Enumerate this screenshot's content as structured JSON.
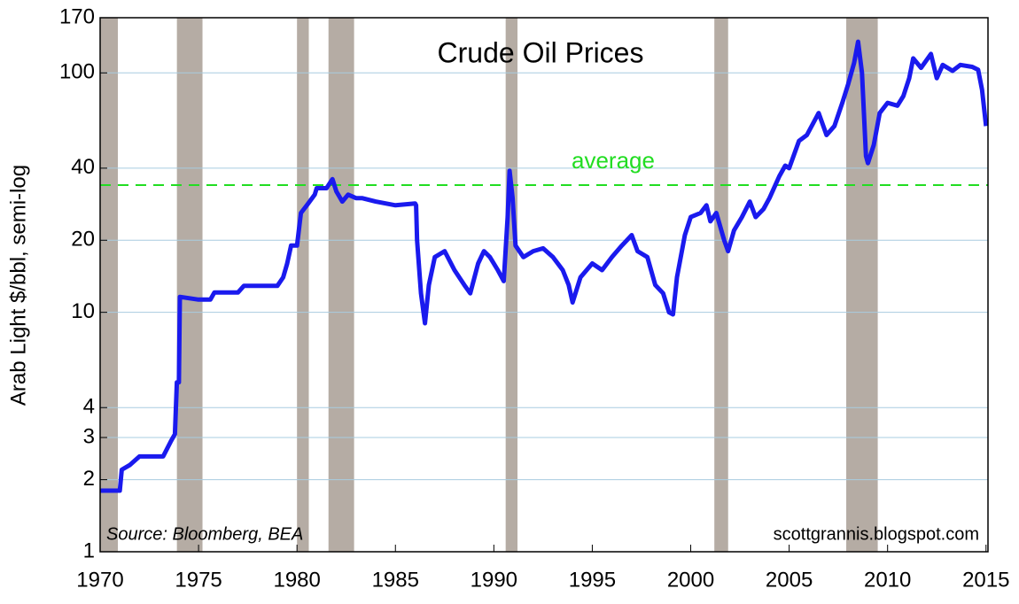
{
  "chart_data": {
    "type": "line",
    "title": "Crude Oil Prices",
    "y_label": "Arab Light $/bbl, semi-log",
    "source": "Source: Bloomberg, BEA",
    "credit": "scottgrannis.blogspot.com",
    "log_scale": true,
    "grid": true,
    "xlim": [
      1970,
      2015.1
    ],
    "ylim": [
      1,
      170
    ],
    "xticks": [
      1970,
      1975,
      1980,
      1985,
      1990,
      1995,
      2000,
      2005,
      2010,
      2015
    ],
    "yticks": [
      1,
      2,
      3,
      4,
      10,
      20,
      40,
      100,
      170
    ],
    "recession_color": "#b5aca4",
    "recessions": [
      [
        1969.9,
        1970.9
      ],
      [
        1973.9,
        1975.2
      ],
      [
        1980.0,
        1980.6
      ],
      [
        1981.6,
        1982.9
      ],
      [
        1990.6,
        1991.2
      ],
      [
        2001.2,
        2001.9
      ],
      [
        2007.9,
        2009.5
      ]
    ],
    "average": {
      "label": "average",
      "value": 34,
      "color": "#22dd22"
    },
    "series": [
      {
        "name": "Arab Light",
        "color": "#1a1aee",
        "x": [
          1970,
          1971,
          1971.1,
          1971.5,
          1972,
          1973.2,
          1973.6,
          1973.8,
          1973.9,
          1974.0,
          1974.05,
          1975,
          1975.6,
          1975.8,
          1977,
          1977.3,
          1979,
          1979.3,
          1979.5,
          1979.7,
          1980,
          1980.2,
          1980.5,
          1980.9,
          1981.0,
          1981.5,
          1981.8,
          1982.0,
          1982.3,
          1982.6,
          1983,
          1983.3,
          1984,
          1985,
          1986.0,
          1986.05,
          1986.1,
          1986.3,
          1986.5,
          1986.7,
          1987,
          1987.5,
          1988,
          1988.5,
          1988.8,
          1989.2,
          1989.5,
          1989.8,
          1990.2,
          1990.5,
          1990.7,
          1990.8,
          1990.95,
          1991.1,
          1991.5,
          1992,
          1992.5,
          1993,
          1993.5,
          1993.8,
          1994,
          1994.4,
          1995,
          1995.5,
          1996,
          1996.5,
          1997,
          1997.3,
          1997.8,
          1998.2,
          1998.6,
          1998.9,
          1999.1,
          1999.3,
          1999.7,
          2000,
          2000.5,
          2000.8,
          2001,
          2001.3,
          2001.7,
          2001.9,
          2002.2,
          2002.6,
          2003,
          2003.3,
          2003.7,
          2004,
          2004.5,
          2004.8,
          2005,
          2005.5,
          2005.9,
          2006.5,
          2006.9,
          2007.3,
          2007.7,
          2008,
          2008.3,
          2008.5,
          2008.7,
          2008.9,
          2009.0,
          2009.3,
          2009.6,
          2010,
          2010.5,
          2010.8,
          2011.1,
          2011.3,
          2011.7,
          2012.2,
          2012.5,
          2012.8,
          2013.3,
          2013.7,
          2014.3,
          2014.6,
          2014.8,
          2015.0
        ],
        "values": [
          1.8,
          1.8,
          2.2,
          2.3,
          2.5,
          2.5,
          2.9,
          3.1,
          5.1,
          5.1,
          11.6,
          11.3,
          11.3,
          12.1,
          12.1,
          12.9,
          12.9,
          14,
          16,
          19,
          19,
          26,
          28,
          31,
          33,
          33,
          36,
          32,
          29,
          31,
          30,
          30,
          29,
          28,
          28.5,
          28,
          20,
          12,
          9,
          13,
          17,
          18,
          15,
          13,
          12,
          16,
          18,
          17,
          15,
          13.5,
          25,
          39,
          30,
          19,
          17,
          18,
          18.5,
          17,
          15,
          13,
          11,
          14,
          16,
          15,
          17,
          19,
          21,
          18,
          17,
          13,
          12,
          10,
          9.8,
          14,
          21,
          25,
          26,
          28,
          24,
          26,
          20,
          18,
          22,
          25,
          29,
          25,
          27,
          30,
          37,
          41,
          40,
          52,
          55,
          68,
          55,
          60,
          75,
          90,
          110,
          135,
          100,
          45,
          42,
          50,
          68,
          75,
          73,
          80,
          95,
          115,
          105,
          120,
          95,
          108,
          102,
          108,
          106,
          103,
          85,
          60
        ]
      }
    ]
  }
}
